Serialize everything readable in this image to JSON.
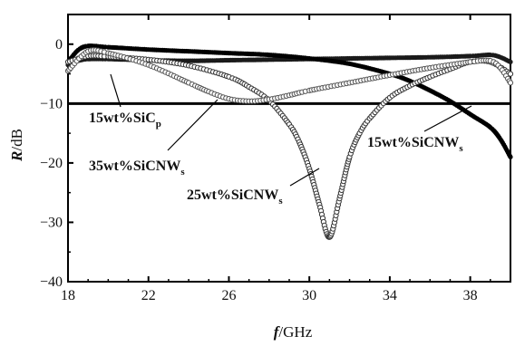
{
  "chart_data": {
    "type": "line",
    "xlabel_var": "f",
    "xlabel_unit": "/GHz",
    "ylabel_var": "R",
    "ylabel_unit": "/dB",
    "xlim": [
      18,
      40
    ],
    "ylim": [
      -40,
      5
    ],
    "xticks": [
      18,
      22,
      26,
      30,
      34,
      38
    ],
    "yticks": [
      0,
      -10,
      -20,
      -30,
      -40
    ],
    "ytick_labels": [
      "0",
      "−10",
      "−20",
      "−30",
      "−40"
    ],
    "reference_line": {
      "y": -10
    },
    "series": [
      {
        "name": "15wt%SiCp",
        "label_main": "15wt%SiC",
        "label_sub": "p",
        "marker": "filled",
        "color": "#1a1a1a",
        "x": [
          18,
          18.5,
          19,
          20,
          22,
          24,
          26,
          28,
          30,
          32,
          34,
          36,
          38,
          39,
          39.5,
          40
        ],
        "y": [
          -3.5,
          -2.8,
          -2.5,
          -2.5,
          -2.7,
          -2.8,
          -2.7,
          -2.6,
          -2.5,
          -2.4,
          -2.3,
          -2.2,
          -2.0,
          -1.8,
          -2.2,
          -3.0
        ]
      },
      {
        "name": "15wt%SiCNWs",
        "label_main": "15wt%SiCNW",
        "label_sub": "s",
        "marker": "filled",
        "color": "#000000",
        "x": [
          18,
          18.5,
          19,
          20,
          22,
          24,
          26,
          28,
          30,
          32,
          34,
          35,
          36,
          37,
          38,
          39,
          39.5,
          40
        ],
        "y": [
          -3.0,
          -1.0,
          -0.3,
          -0.5,
          -0.9,
          -1.2,
          -1.5,
          -1.8,
          -2.4,
          -3.3,
          -5.0,
          -6.2,
          -7.8,
          -9.6,
          -11.8,
          -14.0,
          -16.0,
          -19.0
        ]
      },
      {
        "name": "25wt%SiCNWs",
        "label_main": "25wt%SiCNW",
        "label_sub": "s",
        "marker": "open",
        "color": "#333333",
        "x": [
          18,
          19,
          20,
          22,
          24,
          26,
          27,
          28,
          29,
          29.5,
          30,
          30.5,
          31,
          31.5,
          32,
          32.5,
          33,
          34,
          35,
          36,
          37,
          38,
          39,
          40
        ],
        "y": [
          -3.0,
          -2.0,
          -2.1,
          -2.6,
          -3.6,
          -5.5,
          -7.2,
          -9.5,
          -13.5,
          -16.5,
          -21.0,
          -27.0,
          -32.5,
          -26.0,
          -19.0,
          -15.0,
          -12.5,
          -9.0,
          -7.0,
          -5.5,
          -4.2,
          -3.0,
          -3.0,
          -5.0
        ]
      },
      {
        "name": "35wt%SiCNWs",
        "label_main": "35wt%SiCNW",
        "label_sub": "s",
        "marker": "open",
        "color": "#555555",
        "x": [
          18,
          19,
          20,
          22,
          24,
          25,
          26,
          27,
          28,
          29,
          30,
          32,
          34,
          36,
          38,
          39,
          39.5,
          40
        ],
        "y": [
          -4.5,
          -1.2,
          -1.5,
          -3.5,
          -6.5,
          -8.0,
          -9.2,
          -9.6,
          -9.3,
          -8.6,
          -7.8,
          -6.5,
          -5.2,
          -4.0,
          -3.0,
          -2.8,
          -4.0,
          -6.5
        ]
      }
    ],
    "annotations": [
      {
        "series": "15wt%SiCp",
        "at_x": 23.0,
        "at_y": -14.8,
        "point_x": 23.0,
        "point_y": -13.5,
        "ptr_x": 23.0,
        "ptr_y": -14.8
      }
    ]
  }
}
